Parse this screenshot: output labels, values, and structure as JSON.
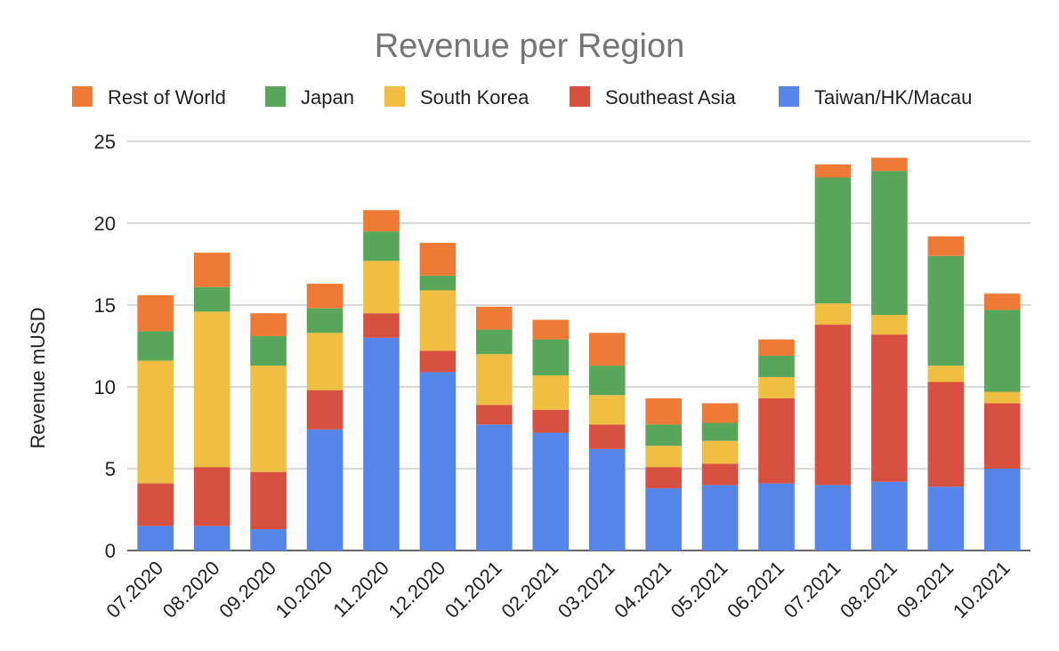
{
  "chart_data": {
    "type": "bar",
    "stacked": true,
    "title": "Revenue per Region",
    "xlabel": "",
    "ylabel": "Revenue mUSD",
    "ylim": [
      0,
      25
    ],
    "yticks": [
      0,
      5,
      10,
      15,
      20,
      25
    ],
    "grid": true,
    "legend_position": "top",
    "categories": [
      "07.2020",
      "08.2020",
      "09.2020",
      "10.2020",
      "11.2020",
      "12.2020",
      "01.2021",
      "02.2021",
      "03.2021",
      "04.2021",
      "05.2021",
      "06.2021",
      "07.2021",
      "08.2021",
      "09.2021",
      "10.2021"
    ],
    "series": [
      {
        "name": "Taiwan/HK/Macau",
        "color": "#5585E8",
        "values": [
          1.5,
          1.5,
          1.3,
          7.4,
          13.0,
          10.9,
          7.7,
          7.2,
          6.2,
          3.8,
          4.0,
          4.1,
          4.0,
          4.2,
          3.9,
          5.0
        ]
      },
      {
        "name": "Southeast Asia",
        "color": "#D8503F",
        "values": [
          2.6,
          3.6,
          3.5,
          2.4,
          1.5,
          1.3,
          1.2,
          1.4,
          1.5,
          1.3,
          1.3,
          5.2,
          9.8,
          9.0,
          6.4,
          4.0
        ]
      },
      {
        "name": "South Korea",
        "color": "#F0BE40",
        "values": [
          7.5,
          9.5,
          6.5,
          3.5,
          3.2,
          3.7,
          3.1,
          2.1,
          1.8,
          1.3,
          1.4,
          1.3,
          1.3,
          1.2,
          1.0,
          0.7
        ]
      },
      {
        "name": "Japan",
        "color": "#57A65A",
        "values": [
          1.8,
          1.5,
          1.8,
          1.5,
          1.8,
          0.9,
          1.5,
          2.2,
          1.8,
          1.3,
          1.1,
          1.3,
          7.7,
          8.8,
          6.7,
          5.0
        ]
      },
      {
        "name": "Rest of World",
        "color": "#EE7A35",
        "values": [
          2.2,
          2.1,
          1.4,
          1.5,
          1.3,
          2.0,
          1.4,
          1.2,
          2.0,
          1.6,
          1.2,
          1.0,
          0.8,
          0.8,
          1.2,
          1.0
        ]
      }
    ],
    "legend_order": [
      "Rest of World",
      "Japan",
      "South Korea",
      "Southeast Asia",
      "Taiwan/HK/Macau"
    ]
  }
}
